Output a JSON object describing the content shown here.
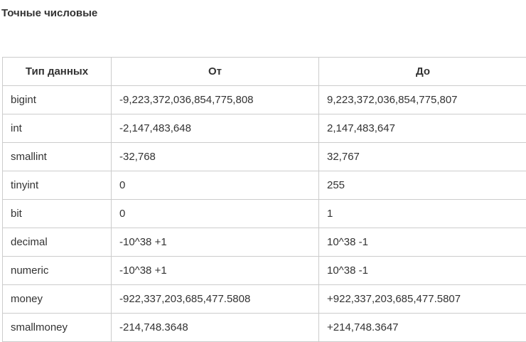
{
  "heading": "Точные числовые",
  "table": {
    "headers": [
      "Тип данных",
      "От",
      "До"
    ],
    "rows": [
      [
        "bigint",
        "-9,223,372,036,854,775,808",
        "9,223,372,036,854,775,807"
      ],
      [
        "int",
        "-2,147,483,648",
        "2,147,483,647"
      ],
      [
        "smallint",
        "-32,768",
        "32,767"
      ],
      [
        "tinyint",
        "0",
        "255"
      ],
      [
        "bit",
        "0",
        "1"
      ],
      [
        "decimal",
        "-10^38 +1",
        "10^38 -1"
      ],
      [
        "numeric",
        "-10^38 +1",
        "10^38 -1"
      ],
      [
        "money",
        "-922,337,203,685,477.5808",
        "+922,337,203,685,477.5807"
      ],
      [
        "smallmoney",
        "-214,748.3648",
        "+214,748.3647"
      ]
    ]
  },
  "colors": {
    "border": "#cccccc",
    "text": "#333333",
    "background": "#ffffff"
  }
}
